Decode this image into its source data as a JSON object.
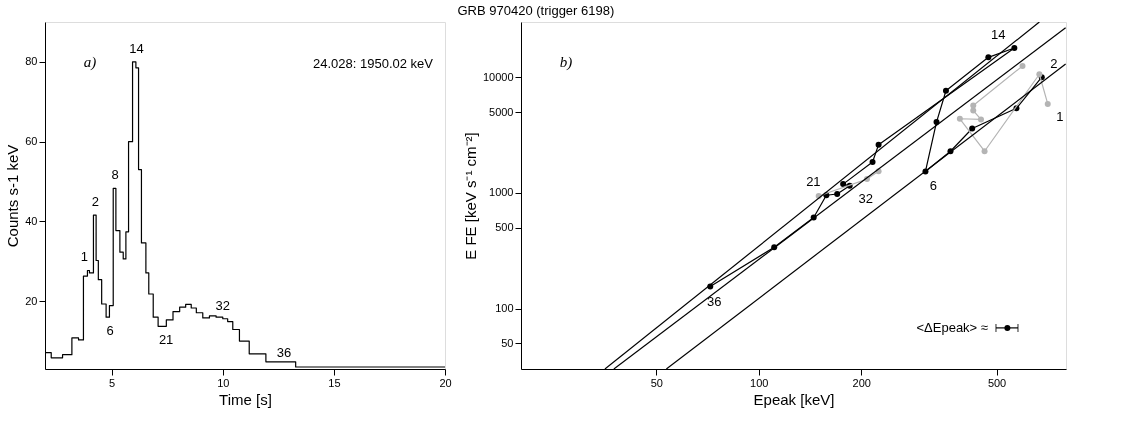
{
  "chart_data": [
    {
      "type": "step",
      "xlabel": "Time [s]",
      "ylabel": "Counts s-1 keV",
      "xlim": [
        2,
        20
      ],
      "ylim": [
        3,
        90
      ],
      "xticks": [
        5,
        10,
        15,
        20
      ],
      "yticks": [
        20,
        40,
        60,
        80
      ],
      "grid": false,
      "marker": "none",
      "x": [
        2.01,
        2.28,
        2.79,
        3.21,
        3.51,
        3.73,
        3.91,
        4.0,
        4.18,
        4.3,
        4.4,
        4.55,
        4.75,
        4.9,
        5.07,
        5.19,
        5.37,
        5.52,
        5.64,
        5.76,
        5.94,
        6.09,
        6.21,
        6.34,
        6.54,
        6.67,
        6.87,
        7.09,
        7.46,
        7.76,
        8.06,
        8.33,
        8.58,
        8.81,
        9.1,
        9.4,
        9.7,
        10.0,
        10.22,
        10.45,
        10.75,
        11.19,
        11.94,
        13.28,
        20
      ],
      "series": [
        {
          "color": "#000000",
          "values": [
            7.1,
            5.8,
            6.6,
            10.8,
            10.3,
            26.3,
            27.7,
            27.1,
            41.6,
            30.2,
            25.4,
            19.3,
            16,
            18.9,
            48.3,
            37.7,
            32.3,
            30.6,
            37.4,
            60,
            80,
            78.5,
            53,
            34.6,
            27.1,
            21.8,
            16,
            13.7,
            15.3,
            17.4,
            18.5,
            19.2,
            18.3,
            17.1,
            15.8,
            16.3,
            16,
            15.6,
            14.9,
            12.9,
            10,
            6.8,
            4.8,
            3.5,
            3.5
          ]
        }
      ],
      "annotations": [
        "GRB 970420 (trigger 6198)",
        "a)",
        "24.028: 1950.02 keV",
        {
          "text": "1",
          "x": 3.91,
          "y": 27.7
        },
        {
          "text": "2",
          "x": 4.18,
          "y": 41.6
        },
        {
          "text": "6",
          "x": 4.75,
          "y": 16
        },
        {
          "text": "8",
          "x": 5.07,
          "y": 48.3
        },
        {
          "text": "14",
          "x": 5.94,
          "y": 80
        },
        {
          "text": "21",
          "x": 7.09,
          "y": 13.7
        },
        {
          "text": "32",
          "x": 10.0,
          "y": 15.6
        },
        {
          "text": "36",
          "x": 11.94,
          "y": 4.8
        }
      ]
    },
    {
      "type": "line",
      "xlabel": "Epeak [keV]",
      "ylabel": "E FE [keV s⁻¹ cm⁻²]",
      "log": "xy",
      "xlim": [
        20,
        800
      ],
      "ylim": [
        30,
        30000
      ],
      "xticks": [
        50,
        100,
        200,
        500
      ],
      "yticks": [
        50,
        100,
        500,
        1000,
        5000,
        10000
      ],
      "grid": false,
      "marker": "circle",
      "series": [
        {
          "type": "line",
          "color": "#000000",
          "x": [
            679,
            572,
            424,
            366,
            309,
            333,
            355,
            473,
            564,
            225,
            216,
            177,
            185,
            170,
            158,
            145,
            111,
            72
          ],
          "values": [
            10000,
            5380,
            3600,
            2290,
            1530,
            4090,
            7640,
            14850,
            17900,
            2610,
            1850,
            1190,
            1150,
            977,
            953,
            612,
            339,
            155
          ]
        },
        {
          "type": "line",
          "color": "#b4b4b4",
          "x": [
            707,
            668,
            461,
            390,
            450,
            427,
            427,
            596
          ],
          "values": [
            5870,
            10600,
            2290,
            4370,
            4310,
            5150,
            5690,
            12500
          ]
        },
        {
          "type": "line",
          "color": "#b4b4b4",
          "x": [
            150,
            208,
            225
          ],
          "values": [
            940,
            1315,
            1540
          ]
        },
        {
          "type": "line",
          "color": "#000000",
          "marker": "none",
          "x": [
            35.3,
            668
          ],
          "values": [
            30,
            30000
          ]
        },
        {
          "type": "line",
          "color": "#000000",
          "marker": "none",
          "x": [
            37.5,
            798
          ],
          "values": [
            30,
            26800
          ]
        },
        {
          "type": "line",
          "color": "#000000",
          "marker": "none",
          "x": [
            53.5,
            798
          ],
          "values": [
            30,
            13000
          ]
        },
        {
          "type": "scatter",
          "color": "#000000",
          "x": [
            538
          ],
          "values": [
            68
          ],
          "xerrors": [
            [
              498,
              578
            ]
          ]
        }
      ],
      "annotations": [
        "b)",
        {
          "text": "14",
          "x": 564,
          "y": 17900
        },
        {
          "text": "2",
          "x": 679,
          "y": 10000
        },
        {
          "text": "1",
          "x": 707,
          "y": 5870
        },
        {
          "text": "21",
          "x": 158,
          "y": 953
        },
        {
          "text": "32",
          "x": 185,
          "y": 1150
        },
        {
          "text": "6",
          "x": 309,
          "y": 1530
        },
        {
          "text": "36",
          "x": 72,
          "y": 155
        },
        "<ΔEpeak> ≈"
      ]
    }
  ]
}
